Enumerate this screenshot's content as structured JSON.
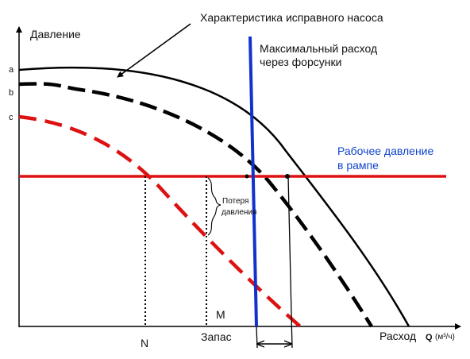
{
  "labels": {
    "pump_curve": "Характеристика исправного насоса",
    "y_axis": "Давление",
    "x_axis": "Расход",
    "x_axis_symbol": "Q",
    "x_axis_unit": "(м³/ч)",
    "max_flow_line1": "Максимальный расход",
    "max_flow_line2": "через форсунки",
    "rail_pressure_line1": "Рабочее давление",
    "rail_pressure_line2": "в рампе",
    "pressure_loss_line1": "Потеря",
    "pressure_loss_line2": "давления",
    "point_a": "a",
    "point_b": "b",
    "point_c": "c",
    "point_n": "N",
    "point_m": "M",
    "reserve": "Запас"
  },
  "colors": {
    "axis": "#000000",
    "healthy_curve": "#000000",
    "worn_curve": "#000000",
    "faulty_curve": "#dd1111",
    "rail_pressure_line": "#dd1111",
    "max_flow_line": "#1133cc",
    "rail_pressure_label": "#1144cc"
  }
}
